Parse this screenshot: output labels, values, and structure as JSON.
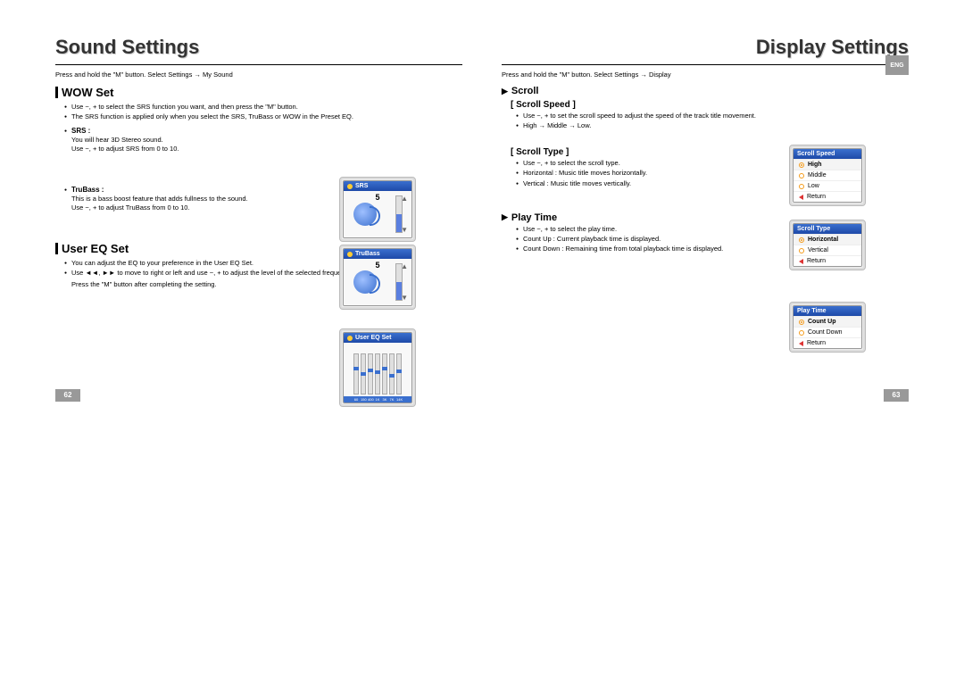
{
  "left": {
    "title": "Sound Settings",
    "breadcrumb": "Press and hold the \"M\" button. Select Settings → My Sound",
    "wow": {
      "heading": "WOW Set",
      "bullets": [
        "Use −, + to select the SRS function you want, and then press the \"M\" button.",
        "The SRS function is applied only when you select the SRS, TruBass or WOW in the Preset EQ."
      ],
      "srs": {
        "label": "SRS :",
        "desc1": "You will hear 3D Stereo sound.",
        "desc2": "Use −, + to adjust SRS from 0 to 10."
      },
      "trubass": {
        "label": "TruBass :",
        "desc1": "This is a bass boost feature that adds fullness to the sound.",
        "desc2": "Use −, + to adjust TruBass from 0 to 10."
      }
    },
    "eq": {
      "heading": "User EQ Set",
      "bullets": [
        "You can adjust the EQ to your preference in the User EQ Set.",
        "Use ◄◄, ►► to move to right or left and use −, + to adjust the level of the selected frequency."
      ],
      "note": "Press the \"M\" button after completing the setting."
    },
    "page_num": "62",
    "mocks": {
      "srs": {
        "title": "SRS",
        "value": "5"
      },
      "trubass": {
        "title": "TruBass",
        "value": "5"
      },
      "eq": {
        "title": "User EQ Set",
        "bands": [
          "60",
          "150",
          "400",
          "1K",
          "3K",
          "7K",
          "14K"
        ],
        "knob_pos": [
          60,
          45,
          55,
          50,
          58,
          40,
          52
        ]
      }
    }
  },
  "right": {
    "title": "Display Settings",
    "breadcrumb": "Press and hold the \"M\" button. Select Settings → Display",
    "lang_tab": "ENG",
    "scroll": {
      "heading": "Scroll",
      "speed": {
        "label": "[ Scroll Speed ]",
        "bullets": [
          "Use −, + to set the scroll speed to adjust the speed of the track title movement.",
          "High → Middle → Low."
        ]
      },
      "type": {
        "label": "[ Scroll Type ]",
        "bullets": [
          "Use −, + to select the scroll type.",
          "Horizontal : Music title moves horizontally.",
          "Vertical : Music title moves vertically."
        ]
      }
    },
    "playtime": {
      "heading": "Play Time",
      "bullets": [
        "Use −, + to select the play time.",
        "Count Up : Current playback time is displayed.",
        "Count Down : Remaining time from total playback time is displayed."
      ]
    },
    "page_num": "63",
    "menus": {
      "scroll_speed": {
        "title": "Scroll Speed",
        "items": [
          "High",
          "Middle",
          "Low",
          "Return"
        ],
        "selected": 0
      },
      "scroll_type": {
        "title": "Scroll Type",
        "items": [
          "Horizontal",
          "Vertical",
          "Return"
        ],
        "selected": 0
      },
      "play_time": {
        "title": "Play Time",
        "items": [
          "Count Up",
          "Count Down",
          "Return"
        ],
        "selected": 0
      }
    }
  },
  "colors": {
    "header_blue": "#2a58b8",
    "accent_orange": "#f59b1a",
    "gray_box": "#999999"
  }
}
